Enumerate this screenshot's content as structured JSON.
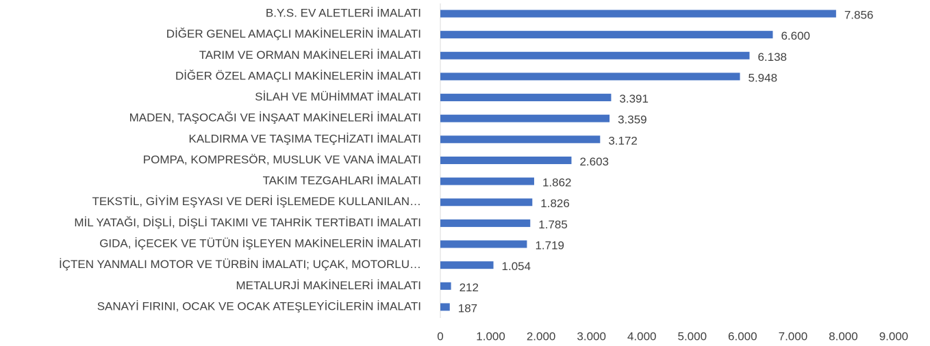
{
  "chart_data": {
    "type": "hbar",
    "categories": [
      "B.Y.S. EV ALETLERİ İMALATI",
      "DİĞER GENEL AMAÇLI MAKİNELERİN İMALATI",
      "TARIM VE ORMAN MAKİNELERİ İMALATI",
      "DİĞER ÖZEL AMAÇLI MAKİNELERİN İMALATI",
      "SİLAH VE MÜHİMMAT İMALATI",
      "MADEN, TAŞOCAĞI VE İNŞAAT MAKİNELERİ İMALATI",
      "KALDIRMA VE TAŞIMA TEÇHİZATI İMALATI",
      "POMPA, KOMPRESÖR, MUSLUK VE VANA İMALATI",
      "TAKIM TEZGAHLARI İMALATI",
      "TEKSTİL, GİYİM EŞYASI VE DERİ İŞLEMEDE KULLANILAN…",
      "MİL YATAĞI, DİŞLİ, DİŞLİ TAKIMI VE TAHRİK TERTİBATI İMALATI",
      "GIDA, İÇECEK VE TÜTÜN İŞLEYEN MAKİNELERİN İMALATI",
      "İÇTEN YANMALI MOTOR VE TÜRBİN İMALATI; UÇAK, MOTORLU…",
      "METALURJİ MAKİNELERİ İMALATI",
      "SANAYİ FIRINI, OCAK VE OCAK ATEŞLEYİCİLERİN İMALATI"
    ],
    "values": [
      7856,
      6600,
      6138,
      5948,
      3391,
      3359,
      3172,
      2603,
      1862,
      1826,
      1785,
      1719,
      1054,
      212,
      187
    ],
    "value_labels": [
      "7.856",
      "6.600",
      "6.138",
      "5.948",
      "3.391",
      "3.359",
      "3.172",
      "2.603",
      "1.862",
      "1.826",
      "1.785",
      "1.719",
      "1.054",
      "212",
      "187"
    ],
    "color": "#4472c4",
    "xlim": [
      0,
      9000
    ],
    "xticks": [
      0,
      {
        "value": 1000,
        "label": "1.000"
      },
      {
        "value": 2000,
        "label": "2.000"
      },
      {
        "value": 3000,
        "label": "3.000"
      },
      {
        "value": 4000,
        "label": "4.000"
      },
      {
        "value": 5000,
        "label": "5.000"
      },
      {
        "value": 6000,
        "label": "6.000"
      },
      {
        "value": 7000,
        "label": "7.000"
      },
      {
        "value": 8000,
        "label": "8.000"
      },
      {
        "value": 9000,
        "label": "9.000"
      }
    ],
    "grid": false
  }
}
